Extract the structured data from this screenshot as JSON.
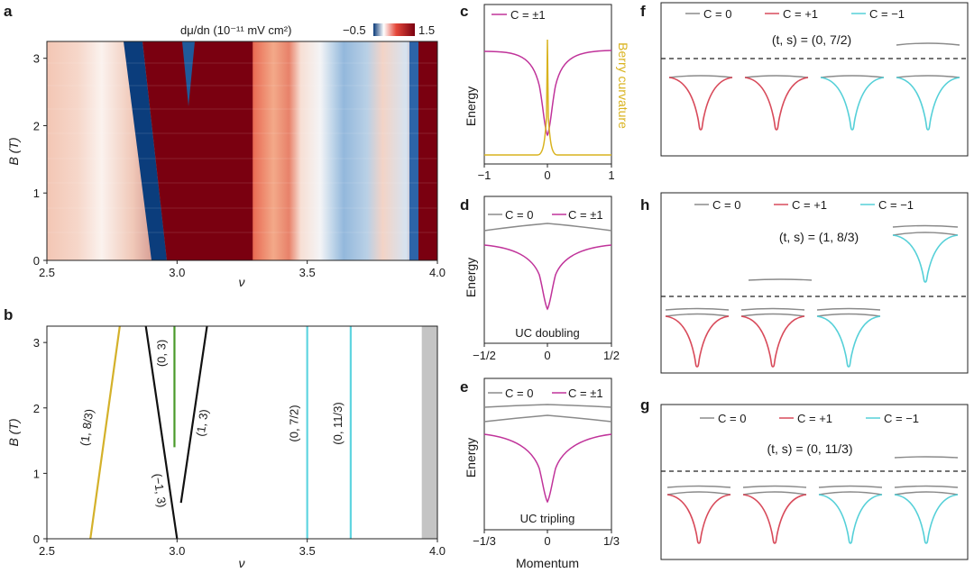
{
  "panels": {
    "a": "a",
    "b": "b",
    "c": "c",
    "d": "d",
    "e": "e",
    "f": "f",
    "g": "g",
    "h": "h"
  },
  "colorbar": {
    "label": "dμ/dn (10⁻¹¹ mV cm²)",
    "min_label": "−0.5",
    "max_label": "1.5",
    "colors": [
      "#0a3a78",
      "#ffffff",
      "#7a0010"
    ]
  },
  "chart_data": [
    {
      "panel": "a",
      "type": "heatmap",
      "xlabel": "ν",
      "ylabel": "B (T)",
      "xlim": [
        2.5,
        4.0
      ],
      "ylim": [
        0,
        3.25
      ],
      "xticks": [
        "2.5",
        "3.0",
        "3.5",
        "4.0"
      ],
      "yticks": [
        "0",
        "1",
        "2",
        "3"
      ],
      "value_range": [
        -0.5,
        1.5
      ],
      "features": [
        {
          "x_at_B0": 2.87,
          "x_at_B3": 2.79,
          "value": -0.5
        },
        {
          "x_range": [
            2.9,
            3.27
          ],
          "value": 1.5
        },
        {
          "x_range": [
            3.27,
            3.45
          ],
          "value": 0.6
        },
        {
          "x_range": [
            3.6,
            3.75
          ],
          "value": -0.2
        },
        {
          "x_range": [
            3.88,
            3.95
          ],
          "value": -0.5
        }
      ]
    },
    {
      "panel": "b",
      "type": "line",
      "xlabel": "ν",
      "ylabel": "B (T)",
      "xlim": [
        2.5,
        4.0
      ],
      "ylim": [
        0,
        3.25
      ],
      "xticks": [
        "2.5",
        "3.0",
        "3.5",
        "4.0"
      ],
      "yticks": [
        "0",
        "1",
        "2",
        "3"
      ],
      "series": [
        {
          "label": "(1, 8/3)",
          "color": "#d4b12a",
          "points": [
            [
              2.667,
              0
            ],
            [
              2.78,
              3.25
            ]
          ]
        },
        {
          "label": "(−1, 3)",
          "color": "#111111",
          "points": [
            [
              3.0,
              0
            ],
            [
              2.88,
              3.25
            ]
          ]
        },
        {
          "label": "(1, 3)",
          "color": "#111111",
          "points": [
            [
              3.015,
              0.55
            ],
            [
              3.115,
              3.25
            ]
          ]
        },
        {
          "label": "(0, 3)",
          "color": "#4a9a2a",
          "points": [
            [
              2.99,
              1.4
            ],
            [
              2.99,
              3.25
            ]
          ]
        },
        {
          "label": "(0, 7/2)",
          "color": "#5fd5e0",
          "points": [
            [
              3.5,
              0
            ],
            [
              3.5,
              3.25
            ]
          ]
        },
        {
          "label": "(0, 11/3)",
          "color": "#5fd5e0",
          "points": [
            [
              3.667,
              0
            ],
            [
              3.667,
              3.25
            ]
          ]
        }
      ],
      "shaded_region": [
        3.94,
        4.0
      ],
      "shade_color": "#c4c4c4"
    },
    {
      "panel": "c",
      "type": "line",
      "ylabel": "Energy",
      "y2label": "Berry curvature",
      "xlim": [
        -1,
        1
      ],
      "xticks": [
        "−1",
        "0",
        "1"
      ],
      "legend": "C = ±1",
      "colors": {
        "band": "#c0339a",
        "berry": "#d9b31f"
      }
    },
    {
      "panel": "d",
      "type": "line",
      "ylabel": "Energy",
      "xlim": [
        -0.5,
        0.5
      ],
      "xticks": [
        "−1/2",
        "0",
        "1/2"
      ],
      "legend": [
        "C = 0",
        "C = ±1"
      ],
      "annotation": "UC doubling",
      "colors": {
        "flat": "#8a8a8a",
        "band": "#c0339a"
      }
    },
    {
      "panel": "e",
      "type": "line",
      "ylabel": "Energy",
      "xlabel": "Momentum",
      "xlim": [
        -0.333,
        0.333
      ],
      "xticks": [
        "−1/3",
        "0",
        "1/3"
      ],
      "legend": [
        "C = 0",
        "C = ±1"
      ],
      "annotation": "UC tripling",
      "colors": {
        "flat": "#8a8a8a",
        "band": "#c0339a"
      }
    },
    {
      "panel": "f",
      "type": "line",
      "legend": [
        "C = 0",
        "C = +1",
        "C = −1"
      ],
      "state": "(t, s) = (0, 7/2)",
      "colors": {
        "c0": "#8a8a8a",
        "cplus": "#d84a5a",
        "cminus": "#55d0d8"
      }
    },
    {
      "panel": "h",
      "type": "line",
      "legend": [
        "C = 0",
        "C = +1",
        "C = −1"
      ],
      "state": "(t, s) = (1, 8/3)",
      "colors": {
        "c0": "#8a8a8a",
        "cplus": "#d84a5a",
        "cminus": "#55d0d8"
      }
    },
    {
      "panel": "g",
      "type": "line",
      "legend": [
        "C = 0",
        "C = +1",
        "C = −1"
      ],
      "state": "(t, s) = (0, 11/3)",
      "colors": {
        "c0": "#8a8a8a",
        "cplus": "#d84a5a",
        "cminus": "#55d0d8"
      }
    }
  ]
}
